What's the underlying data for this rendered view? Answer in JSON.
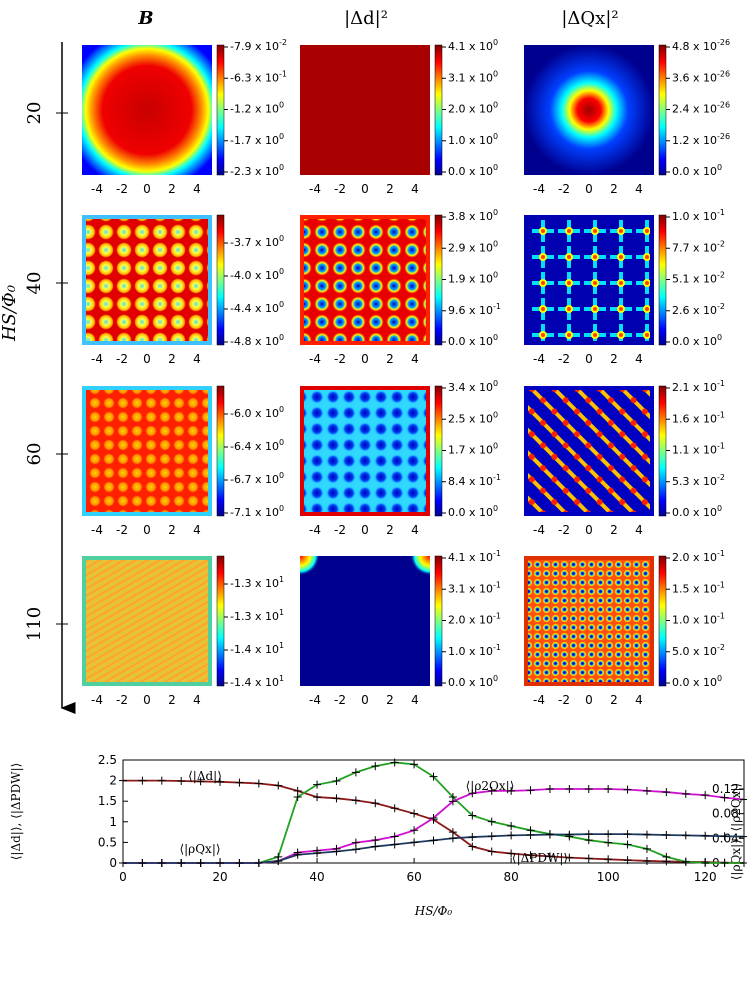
{
  "column_titles": [
    "B",
    "|Δd|²",
    "|ΔQx|²"
  ],
  "axis_label": "HS/Φ₀",
  "panel_xticks": [
    -4,
    -2,
    0,
    2,
    4
  ],
  "rows": [
    {
      "label": 20,
      "colorbars": [
        [
          {
            "m": "-7.9 x 10",
            "e": "-2"
          },
          {
            "m": "-6.3 x 10",
            "e": "-1"
          },
          {
            "m": "-1.2 x 10",
            "e": "0"
          },
          {
            "m": "-1.7 x 10",
            "e": "0"
          },
          {
            "m": "-2.3 x 10",
            "e": "0"
          }
        ],
        [
          {
            "m": "4.1 x 10",
            "e": "0"
          },
          {
            "m": "3.1 x 10",
            "e": "0"
          },
          {
            "m": "2.0 x 10",
            "e": "0"
          },
          {
            "m": "1.0 x 10",
            "e": "0"
          },
          {
            "m": "0.0 x 10",
            "e": "0"
          }
        ],
        [
          {
            "m": "4.8 x 10",
            "e": "-26"
          },
          {
            "m": "3.6 x 10",
            "e": "-26"
          },
          {
            "m": "2.4 x 10",
            "e": "-26"
          },
          {
            "m": "1.2 x 10",
            "e": "-26"
          },
          {
            "m": "0.0 x 10",
            "e": "0"
          }
        ]
      ]
    },
    {
      "label": 40,
      "colorbars": [
        [
          {
            "m": "-3.7 x 10",
            "e": "0"
          },
          {
            "m": "-4.0 x 10",
            "e": "0"
          },
          {
            "m": "-4.4 x 10",
            "e": "0"
          },
          {
            "m": "-4.8 x 10",
            "e": "0"
          }
        ],
        [
          {
            "m": "3.8 x 10",
            "e": "0"
          },
          {
            "m": "2.9 x 10",
            "e": "0"
          },
          {
            "m": "1.9 x 10",
            "e": "0"
          },
          {
            "m": "9.6 x 10",
            "e": "-1"
          },
          {
            "m": "0.0 x 10",
            "e": "0"
          }
        ],
        [
          {
            "m": "1.0 x 10",
            "e": "-1"
          },
          {
            "m": "7.7 x 10",
            "e": "-2"
          },
          {
            "m": "5.1 x 10",
            "e": "-2"
          },
          {
            "m": "2.6 x 10",
            "e": "-2"
          },
          {
            "m": "0.0 x 10",
            "e": "0"
          }
        ]
      ]
    },
    {
      "label": 60,
      "colorbars": [
        [
          {
            "m": "-6.0 x 10",
            "e": "0"
          },
          {
            "m": "-6.4 x 10",
            "e": "0"
          },
          {
            "m": "-6.7 x 10",
            "e": "0"
          },
          {
            "m": "-7.1 x 10",
            "e": "0"
          }
        ],
        [
          {
            "m": "3.4 x 10",
            "e": "0"
          },
          {
            "m": "2.5 x 10",
            "e": "0"
          },
          {
            "m": "1.7 x 10",
            "e": "0"
          },
          {
            "m": "8.4 x 10",
            "e": "-1"
          },
          {
            "m": "0.0 x 10",
            "e": "0"
          }
        ],
        [
          {
            "m": "2.1 x 10",
            "e": "-1"
          },
          {
            "m": "1.6 x 10",
            "e": "-1"
          },
          {
            "m": "1.1 x 10",
            "e": "-1"
          },
          {
            "m": "5.3 x 10",
            "e": "-2"
          },
          {
            "m": "0.0 x 10",
            "e": "0"
          }
        ]
      ]
    },
    {
      "label": 110,
      "colorbars": [
        [
          {
            "m": "-1.3 x 10",
            "e": "1"
          },
          {
            "m": "-1.3 x 10",
            "e": "1"
          },
          {
            "m": "-1.4 x 10",
            "e": "1"
          },
          {
            "m": "-1.4 x 10",
            "e": "1"
          }
        ],
        [
          {
            "m": "4.1 x 10",
            "e": "-1"
          },
          {
            "m": "3.1 x 10",
            "e": "-1"
          },
          {
            "m": "2.0 x 10",
            "e": "-1"
          },
          {
            "m": "1.0 x 10",
            "e": "-1"
          },
          {
            "m": "0.0 x 10",
            "e": "0"
          }
        ],
        [
          {
            "m": "2.0 x 10",
            "e": "-1"
          },
          {
            "m": "1.5 x 10",
            "e": "-1"
          },
          {
            "m": "1.0 x 10",
            "e": "-1"
          },
          {
            "m": "5.0 x 10",
            "e": "-2"
          },
          {
            "m": "0.0 x 10",
            "e": "0"
          }
        ]
      ]
    }
  ],
  "chart_data": {
    "type": "line",
    "x_label": "HS/Φ₀",
    "y_label": "⟨|Δd|⟩, ⟨|ΔPDW|⟩",
    "y2_label": "⟨|ρQx|⟩, ⟨|ρ2Qx|⟩",
    "x": [
      0,
      4,
      8,
      12,
      16,
      20,
      24,
      28,
      32,
      36,
      40,
      44,
      48,
      52,
      56,
      60,
      64,
      68,
      72,
      76,
      80,
      84,
      88,
      92,
      96,
      100,
      104,
      108,
      112,
      116,
      120,
      124,
      128
    ],
    "xlim": [
      0,
      128
    ],
    "xticks": [
      0,
      20,
      40,
      60,
      80,
      100,
      120
    ],
    "ylim": [
      0,
      2.5
    ],
    "yticks": [
      0,
      0.5,
      1,
      1.5,
      2,
      2.5
    ],
    "y2lim": [
      0,
      0.167
    ],
    "y2ticks": [
      0,
      0.04,
      0.08,
      0.12
    ],
    "series": [
      {
        "name": "⟨|Δd|⟩",
        "color": "#8b1a1a",
        "values": [
          2.0,
          2.0,
          2.0,
          1.99,
          1.98,
          1.97,
          1.95,
          1.93,
          1.88,
          1.75,
          1.6,
          1.57,
          1.52,
          1.45,
          1.33,
          1.2,
          1.05,
          0.75,
          0.4,
          0.28,
          0.23,
          0.19,
          0.16,
          0.13,
          0.11,
          0.09,
          0.07,
          0.05,
          0.04,
          0.03,
          0.02,
          0.01,
          0.0
        ]
      },
      {
        "name": "⟨|ρQx|⟩",
        "color": "#22a022",
        "axis": "y2",
        "values": [
          0,
          0,
          0,
          0,
          0,
          0,
          0,
          0,
          0.01,
          0.107,
          0.127,
          0.133,
          0.147,
          0.157,
          0.163,
          0.16,
          0.14,
          0.107,
          0.077,
          0.067,
          0.06,
          0.053,
          0.047,
          0.043,
          0.037,
          0.033,
          0.03,
          0.023,
          0.01,
          0.002,
          0,
          0,
          0
        ]
      },
      {
        "name": "⟨|ρ2Qx|⟩",
        "color": "#d010d0",
        "axis": "y2",
        "values": [
          0,
          0,
          0,
          0,
          0,
          0,
          0,
          0,
          0.003,
          0.017,
          0.02,
          0.023,
          0.033,
          0.037,
          0.043,
          0.053,
          0.073,
          0.1,
          0.113,
          0.117,
          0.117,
          0.118,
          0.12,
          0.12,
          0.12,
          0.12,
          0.119,
          0.117,
          0.115,
          0.112,
          0.11,
          0.106,
          0.103
        ]
      },
      {
        "name": "⟨|ΔPDW|⟩",
        "color": "#1f3a5f",
        "values": [
          0,
          0,
          0,
          0,
          0,
          0,
          0,
          0,
          0.05,
          0.2,
          0.24,
          0.28,
          0.33,
          0.4,
          0.45,
          0.5,
          0.55,
          0.6,
          0.63,
          0.65,
          0.67,
          0.68,
          0.69,
          0.69,
          0.7,
          0.7,
          0.7,
          0.69,
          0.68,
          0.67,
          0.66,
          0.65,
          0.64
        ]
      }
    ]
  }
}
